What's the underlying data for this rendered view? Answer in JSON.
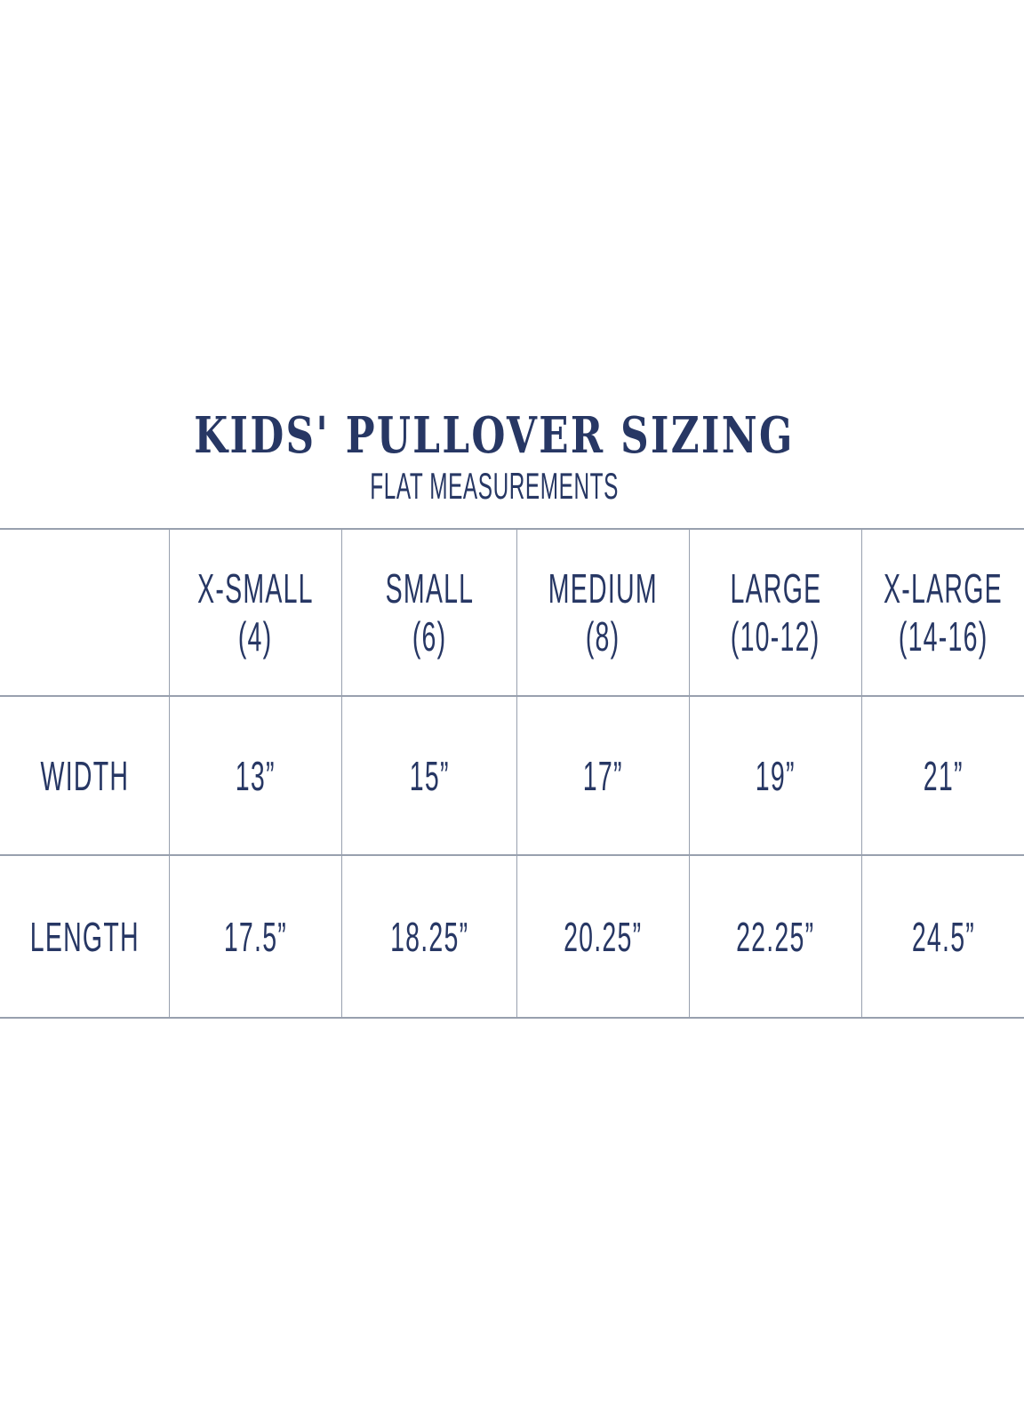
{
  "colors": {
    "navy": "#273764",
    "grid": "#98a0ae"
  },
  "header": {
    "title": "KIDS' PULLOVER SIZING",
    "subtitle": "FLAT MEASUREMENTS"
  },
  "table": {
    "columns": [
      {
        "label": "X-SMALL",
        "sub": "(4)"
      },
      {
        "label": "SMALL",
        "sub": "(6)"
      },
      {
        "label": "MEDIUM",
        "sub": "(8)"
      },
      {
        "label": "LARGE",
        "sub": "(10-12)"
      },
      {
        "label": "X-LARGE",
        "sub": "(14-16)"
      }
    ],
    "rows": [
      {
        "label": "WIDTH",
        "values": [
          "13”",
          "15”",
          "17”",
          "19”",
          "21”"
        ]
      },
      {
        "label": "LENGTH",
        "values": [
          "17.5”",
          "18.25”",
          "20.25”",
          "22.25”",
          "24.5”"
        ]
      }
    ]
  },
  "chart_data": {
    "type": "table",
    "title": "KIDS' PULLOVER SIZING",
    "subtitle": "FLAT MEASUREMENTS",
    "columns": [
      "X-SMALL (4)",
      "SMALL (6)",
      "MEDIUM (8)",
      "LARGE (10-12)",
      "X-LARGE (14-16)"
    ],
    "rows": [
      {
        "label": "WIDTH",
        "unit": "inches",
        "values": [
          13,
          15,
          17,
          19,
          21
        ]
      },
      {
        "label": "LENGTH",
        "unit": "inches",
        "values": [
          17.5,
          18.25,
          20.25,
          22.25,
          24.5
        ]
      }
    ]
  }
}
